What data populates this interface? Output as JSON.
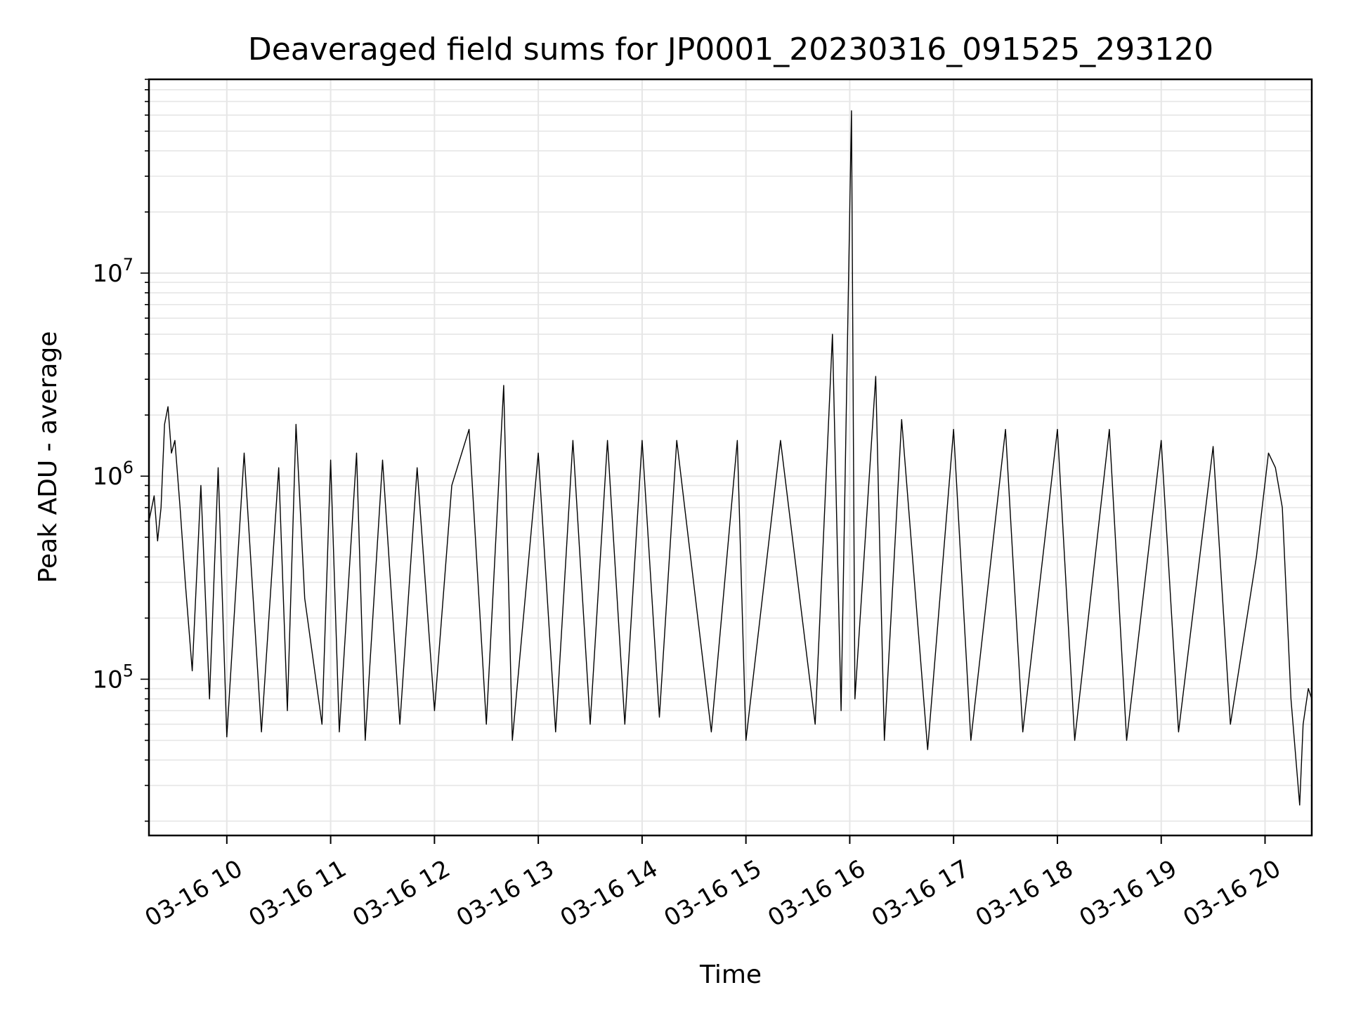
{
  "chart_data": {
    "type": "line",
    "title": "Deaveraged field sums for JP0001_20230316_091525_293120",
    "xlabel": "Time",
    "ylabel": "Peak ADU - average",
    "yscale": "log",
    "ylim": [
      17000,
      90000000
    ],
    "xlim": [
      "2023-03-16 09:15",
      "2023-03-16 20:27"
    ],
    "grid": true,
    "line_color": "#000000",
    "grid_color": "#e6e6e6",
    "x_ticks": [
      {
        "t": "2023-03-16 10:00",
        "label": "03-16 10"
      },
      {
        "t": "2023-03-16 11:00",
        "label": "03-16 11"
      },
      {
        "t": "2023-03-16 12:00",
        "label": "03-16 12"
      },
      {
        "t": "2023-03-16 13:00",
        "label": "03-16 13"
      },
      {
        "t": "2023-03-16 14:00",
        "label": "03-16 14"
      },
      {
        "t": "2023-03-16 15:00",
        "label": "03-16 15"
      },
      {
        "t": "2023-03-16 16:00",
        "label": "03-16 16"
      },
      {
        "t": "2023-03-16 17:00",
        "label": "03-16 17"
      },
      {
        "t": "2023-03-16 18:00",
        "label": "03-16 18"
      },
      {
        "t": "2023-03-16 19:00",
        "label": "03-16 19"
      },
      {
        "t": "2023-03-16 20:00",
        "label": "03-16 20"
      }
    ],
    "y_ticks": [
      {
        "value": 100000,
        "base": "10",
        "exp": "5"
      },
      {
        "value": 1000000,
        "base": "10",
        "exp": "6"
      },
      {
        "value": 10000000,
        "base": "10",
        "exp": "7"
      }
    ],
    "series": [
      {
        "points": [
          [
            "2023-03-16 09:15",
            600000
          ],
          [
            "2023-03-16 09:18",
            800000
          ],
          [
            "2023-03-16 09:20",
            480000
          ],
          [
            "2023-03-16 09:22",
            700000
          ],
          [
            "2023-03-16 09:24",
            1800000
          ],
          [
            "2023-03-16 09:26",
            2200000
          ],
          [
            "2023-03-16 09:28",
            1300000
          ],
          [
            "2023-03-16 09:30",
            1500000
          ],
          [
            "2023-03-16 09:33",
            700000
          ],
          [
            "2023-03-16 09:36",
            300000
          ],
          [
            "2023-03-16 09:40",
            110000
          ],
          [
            "2023-03-16 09:45",
            900000
          ],
          [
            "2023-03-16 09:50",
            80000
          ],
          [
            "2023-03-16 09:55",
            1100000
          ],
          [
            "2023-03-16 10:00",
            52000
          ],
          [
            "2023-03-16 10:10",
            1300000
          ],
          [
            "2023-03-16 10:20",
            55000
          ],
          [
            "2023-03-16 10:30",
            1100000
          ],
          [
            "2023-03-16 10:35",
            70000
          ],
          [
            "2023-03-16 10:40",
            1800000
          ],
          [
            "2023-03-16 10:45",
            250000
          ],
          [
            "2023-03-16 10:55",
            60000
          ],
          [
            "2023-03-16 11:00",
            1200000
          ],
          [
            "2023-03-16 11:05",
            55000
          ],
          [
            "2023-03-16 11:15",
            1300000
          ],
          [
            "2023-03-16 11:20",
            50000
          ],
          [
            "2023-03-16 11:30",
            1200000
          ],
          [
            "2023-03-16 11:40",
            60000
          ],
          [
            "2023-03-16 11:50",
            1100000
          ],
          [
            "2023-03-16 12:00",
            70000
          ],
          [
            "2023-03-16 12:10",
            900000
          ],
          [
            "2023-03-16 12:20",
            1700000
          ],
          [
            "2023-03-16 12:30",
            60000
          ],
          [
            "2023-03-16 12:40",
            2800000
          ],
          [
            "2023-03-16 12:45",
            50000
          ],
          [
            "2023-03-16 13:00",
            1300000
          ],
          [
            "2023-03-16 13:10",
            55000
          ],
          [
            "2023-03-16 13:20",
            1500000
          ],
          [
            "2023-03-16 13:30",
            60000
          ],
          [
            "2023-03-16 13:40",
            1500000
          ],
          [
            "2023-03-16 13:50",
            60000
          ],
          [
            "2023-03-16 14:00",
            1500000
          ],
          [
            "2023-03-16 14:10",
            65000
          ],
          [
            "2023-03-16 14:20",
            1500000
          ],
          [
            "2023-03-16 14:40",
            55000
          ],
          [
            "2023-03-16 14:55",
            1500000
          ],
          [
            "2023-03-16 15:00",
            50000
          ],
          [
            "2023-03-16 15:20",
            1500000
          ],
          [
            "2023-03-16 15:40",
            60000
          ],
          [
            "2023-03-16 15:50",
            5000000
          ],
          [
            "2023-03-16 15:55",
            70000
          ],
          [
            "2023-03-16 16:01",
            63000000
          ],
          [
            "2023-03-16 16:03",
            80000
          ],
          [
            "2023-03-16 16:15",
            3100000
          ],
          [
            "2023-03-16 16:20",
            50000
          ],
          [
            "2023-03-16 16:30",
            1900000
          ],
          [
            "2023-03-16 16:45",
            45000
          ],
          [
            "2023-03-16 17:00",
            1700000
          ],
          [
            "2023-03-16 17:10",
            50000
          ],
          [
            "2023-03-16 17:30",
            1700000
          ],
          [
            "2023-03-16 17:40",
            55000
          ],
          [
            "2023-03-16 18:00",
            1700000
          ],
          [
            "2023-03-16 18:10",
            50000
          ],
          [
            "2023-03-16 18:30",
            1700000
          ],
          [
            "2023-03-16 18:40",
            50000
          ],
          [
            "2023-03-16 19:00",
            1500000
          ],
          [
            "2023-03-16 19:10",
            55000
          ],
          [
            "2023-03-16 19:30",
            1400000
          ],
          [
            "2023-03-16 19:40",
            60000
          ],
          [
            "2023-03-16 19:55",
            400000
          ],
          [
            "2023-03-16 20:02",
            1300000
          ],
          [
            "2023-03-16 20:06",
            1100000
          ],
          [
            "2023-03-16 20:10",
            700000
          ],
          [
            "2023-03-16 20:15",
            80000
          ],
          [
            "2023-03-16 20:20",
            24000
          ],
          [
            "2023-03-16 20:22",
            60000
          ],
          [
            "2023-03-16 20:25",
            90000
          ],
          [
            "2023-03-16 20:27",
            80000
          ]
        ]
      }
    ]
  }
}
